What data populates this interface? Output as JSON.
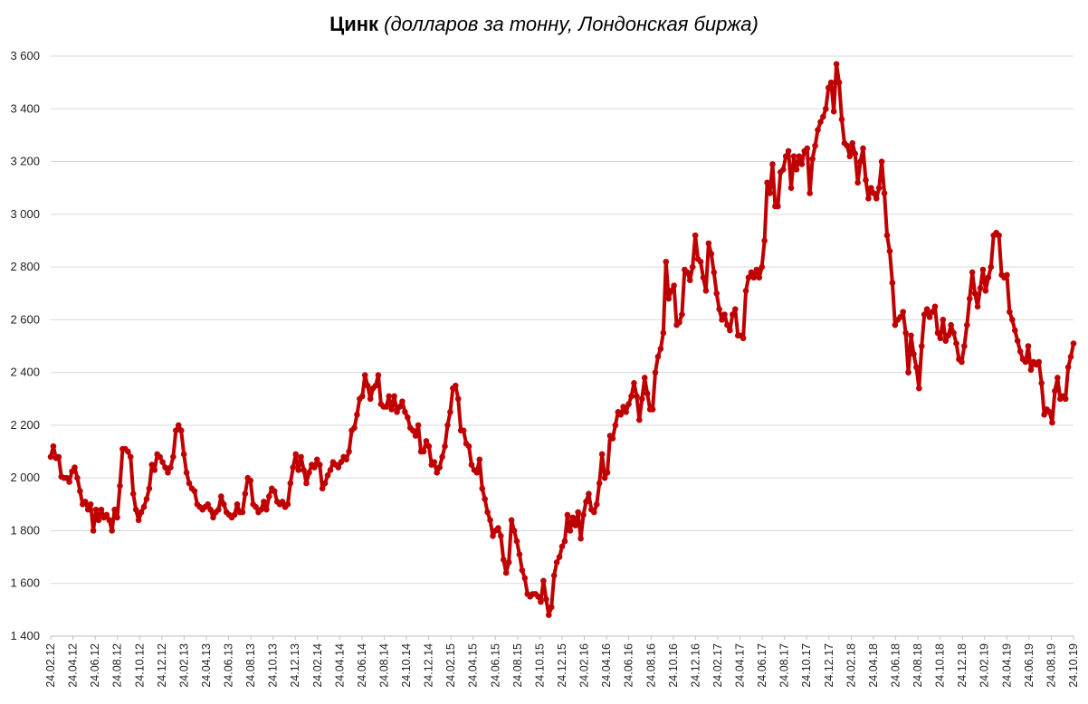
{
  "chart_data": {
    "type": "line",
    "title": "Цинк",
    "subtitle": "(долларов за тонну, Лондонская биржа)",
    "xlabel": "",
    "ylabel": "",
    "ylim": [
      1400,
      3600
    ],
    "y_ticks": [
      1400,
      1600,
      1800,
      2000,
      2200,
      2400,
      2600,
      2800,
      3000,
      3200,
      3400,
      3600
    ],
    "y_tick_labels": [
      "1 400",
      "1 600",
      "1 800",
      "2 000",
      "2 200",
      "2 400",
      "2 600",
      "2 800",
      "3 000",
      "3 200",
      "3 400",
      "3 600"
    ],
    "x_tick_labels": [
      "24.02.12",
      "24.04.12",
      "24.06.12",
      "24.08.12",
      "24.10.12",
      "24.12.12",
      "24.02.13",
      "24.04.13",
      "24.06.13",
      "24.08.13",
      "24.10.13",
      "24.12.13",
      "24.02.14",
      "24.04.14",
      "24.06.14",
      "24.08.14",
      "24.10.14",
      "24.12.14",
      "24.02.15",
      "24.04.15",
      "24.06.15",
      "24.08.15",
      "24.10.15",
      "24.12.15",
      "24.02.16",
      "24.04.16",
      "24.06.16",
      "24.08.16",
      "24.10.16",
      "24.12.16",
      "24.02.17",
      "24.04.17",
      "24.06.17",
      "24.08.17",
      "24.10.17",
      "24.12.17",
      "24.02.18",
      "24.04.18",
      "24.06.18",
      "24.08.18",
      "24.10.18",
      "24.12.18",
      "24.02.19",
      "24.04.19",
      "24.06.19",
      "24.08.19",
      "24.10.19"
    ],
    "grid": true,
    "legend": "none",
    "series_color": "#c00000",
    "series": [
      {
        "values": [
          2080,
          2120,
          2075,
          2080,
          2005,
          2000,
          2000,
          1985,
          2025,
          2040,
          2000,
          1950,
          1900,
          1910,
          1880,
          1900,
          1800,
          1880,
          1840,
          1880,
          1850,
          1860,
          1840,
          1800,
          1880,
          1850,
          1970,
          2110,
          2110,
          2100,
          2080,
          1940,
          1880,
          1840,
          1870,
          1890,
          1920,
          1960,
          2050,
          2030,
          2090,
          2080,
          2060,
          2040,
          2020,
          2040,
          2080,
          2180,
          2200,
          2180,
          2090,
          2020,
          1980,
          1960,
          1950,
          1900,
          1890,
          1880,
          1890,
          1900,
          1880,
          1850,
          1870,
          1880,
          1930,
          1900,
          1870,
          1860,
          1850,
          1860,
          1900,
          1870,
          1870,
          1940,
          2000,
          1990,
          1900,
          1890,
          1870,
          1880,
          1910,
          1880,
          1930,
          1960,
          1950,
          1910,
          1900,
          1910,
          1890,
          1900,
          1980,
          2040,
          2090,
          2030,
          2080,
          2030,
          1980,
          2020,
          2050,
          2040,
          2070,
          2050,
          1960,
          1980,
          2010,
          2030,
          2060,
          2050,
          2040,
          2060,
          2080,
          2070,
          2100,
          2180,
          2190,
          2240,
          2300,
          2310,
          2390,
          2350,
          2300,
          2340,
          2350,
          2390,
          2280,
          2270,
          2270,
          2310,
          2260,
          2310,
          2250,
          2270,
          2290,
          2250,
          2230,
          2190,
          2180,
          2160,
          2200,
          2100,
          2100,
          2140,
          2120,
          2050,
          2060,
          2020,
          2040,
          2080,
          2120,
          2200,
          2250,
          2340,
          2350,
          2300,
          2180,
          2180,
          2130,
          2120,
          2050,
          2030,
          2020,
          2070,
          1960,
          1920,
          1870,
          1840,
          1780,
          1800,
          1810,
          1780,
          1690,
          1640,
          1680,
          1840,
          1800,
          1760,
          1710,
          1650,
          1620,
          1560,
          1550,
          1560,
          1560,
          1550,
          1530,
          1610,
          1540,
          1480,
          1510,
          1630,
          1680,
          1700,
          1740,
          1760,
          1860,
          1800,
          1850,
          1820,
          1870,
          1770,
          1860,
          1910,
          1940,
          1880,
          1870,
          1900,
          1980,
          2090,
          2000,
          2020,
          2160,
          2150,
          2200,
          2250,
          2240,
          2270,
          2250,
          2280,
          2310,
          2360,
          2310,
          2220,
          2300,
          2380,
          2320,
          2260,
          2260,
          2400,
          2460,
          2490,
          2550,
          2820,
          2680,
          2710,
          2730,
          2580,
          2590,
          2620,
          2790,
          2780,
          2750,
          2800,
          2920,
          2830,
          2820,
          2760,
          2710,
          2890,
          2850,
          2780,
          2700,
          2640,
          2600,
          2620,
          2580,
          2560,
          2620,
          2640,
          2540,
          2540,
          2530,
          2710,
          2760,
          2780,
          2760,
          2790,
          2760,
          2800,
          2900,
          3120,
          3080,
          3190,
          3030,
          3030,
          3160,
          3170,
          3220,
          3240,
          3100,
          3220,
          3170,
          3220,
          3190,
          3240,
          3250,
          3080,
          3210,
          3260,
          3320,
          3350,
          3370,
          3400,
          3480,
          3500,
          3390,
          3570,
          3500,
          3360,
          3270,
          3260,
          3220,
          3270,
          3230,
          3120,
          3200,
          3250,
          3130,
          3060,
          3100,
          3080,
          3060,
          3100,
          3200,
          3080,
          2920,
          2860,
          2740,
          2580,
          2600,
          2610,
          2630,
          2550,
          2400,
          2540,
          2470,
          2420,
          2340,
          2500,
          2620,
          2640,
          2610,
          2630,
          2650,
          2550,
          2530,
          2600,
          2520,
          2540,
          2580,
          2550,
          2510,
          2450,
          2440,
          2500,
          2580,
          2680,
          2780,
          2700,
          2650,
          2720,
          2790,
          2710,
          2760,
          2800,
          2920,
          2930,
          2920,
          2770,
          2760,
          2770,
          2630,
          2600,
          2560,
          2520,
          2480,
          2450,
          2440,
          2500,
          2410,
          2440,
          2430,
          2440,
          2360,
          2240,
          2260,
          2250,
          2210,
          2330,
          2380,
          2300,
          2310,
          2300,
          2420,
          2460,
          2510
        ]
      }
    ]
  }
}
